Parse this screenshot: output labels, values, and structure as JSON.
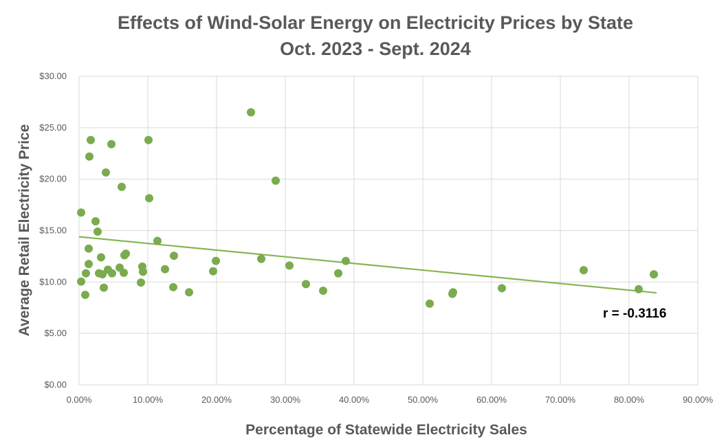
{
  "chart_data": {
    "type": "scatter",
    "title_line1": "Effects of Wind-Solar Energy on Electricity Prices by State",
    "title_line2": "Oct. 2023 - Sept. 2024",
    "xlabel": "Percentage of Statewide Electricity Sales",
    "ylabel": "Average Retail Electricity Price",
    "xlim": [
      0,
      0.9
    ],
    "ylim": [
      0,
      30
    ],
    "x_ticks": [
      0,
      0.1,
      0.2,
      0.3,
      0.4,
      0.5,
      0.6,
      0.7,
      0.8,
      0.9
    ],
    "x_tick_labels": [
      "0.00%",
      "10.00%",
      "20.00%",
      "30.00%",
      "40.00%",
      "50.00%",
      "60.00%",
      "70.00%",
      "80.00%",
      "90.00%"
    ],
    "y_ticks": [
      0,
      5,
      10,
      15,
      20,
      25,
      30
    ],
    "y_tick_labels": [
      "$0.00",
      "$5.00",
      "$10.00",
      "$15.00",
      "$20.00",
      "$25.00",
      "$30.00"
    ],
    "grid": true,
    "point_color": "#7aab4f",
    "trendline_color": "#86b552",
    "grid_color": "#d9d9d9",
    "trendline": {
      "x": [
        0,
        0.84
      ],
      "y": [
        14.4,
        8.95
      ]
    },
    "annotation": "r = -0.3116",
    "points": [
      {
        "x": 0.003,
        "y": 16.75
      },
      {
        "x": 0.003,
        "y": 10.05
      },
      {
        "x": 0.009,
        "y": 8.75
      },
      {
        "x": 0.01,
        "y": 10.85
      },
      {
        "x": 0.014,
        "y": 13.25
      },
      {
        "x": 0.014,
        "y": 11.75
      },
      {
        "x": 0.015,
        "y": 22.2
      },
      {
        "x": 0.017,
        "y": 23.8
      },
      {
        "x": 0.024,
        "y": 15.9
      },
      {
        "x": 0.027,
        "y": 14.9
      },
      {
        "x": 0.029,
        "y": 10.85
      },
      {
        "x": 0.032,
        "y": 12.4
      },
      {
        "x": 0.034,
        "y": 10.75
      },
      {
        "x": 0.036,
        "y": 9.45
      },
      {
        "x": 0.039,
        "y": 20.65
      },
      {
        "x": 0.042,
        "y": 11.2
      },
      {
        "x": 0.047,
        "y": 23.4
      },
      {
        "x": 0.048,
        "y": 10.85
      },
      {
        "x": 0.059,
        "y": 11.4
      },
      {
        "x": 0.062,
        "y": 19.25
      },
      {
        "x": 0.065,
        "y": 10.9
      },
      {
        "x": 0.066,
        "y": 12.6
      },
      {
        "x": 0.068,
        "y": 12.75
      },
      {
        "x": 0.09,
        "y": 9.95
      },
      {
        "x": 0.092,
        "y": 11.5
      },
      {
        "x": 0.093,
        "y": 11.0
      },
      {
        "x": 0.101,
        "y": 23.8
      },
      {
        "x": 0.102,
        "y": 18.15
      },
      {
        "x": 0.114,
        "y": 14.0
      },
      {
        "x": 0.125,
        "y": 11.25
      },
      {
        "x": 0.137,
        "y": 9.5
      },
      {
        "x": 0.138,
        "y": 12.55
      },
      {
        "x": 0.16,
        "y": 9.0
      },
      {
        "x": 0.195,
        "y": 11.05
      },
      {
        "x": 0.199,
        "y": 12.05
      },
      {
        "x": 0.25,
        "y": 26.5
      },
      {
        "x": 0.265,
        "y": 12.25
      },
      {
        "x": 0.286,
        "y": 19.85
      },
      {
        "x": 0.306,
        "y": 11.6
      },
      {
        "x": 0.33,
        "y": 9.8
      },
      {
        "x": 0.355,
        "y": 9.15
      },
      {
        "x": 0.377,
        "y": 10.85
      },
      {
        "x": 0.388,
        "y": 12.05
      },
      {
        "x": 0.51,
        "y": 7.9
      },
      {
        "x": 0.543,
        "y": 8.85
      },
      {
        "x": 0.544,
        "y": 9.0
      },
      {
        "x": 0.615,
        "y": 9.4
      },
      {
        "x": 0.734,
        "y": 11.15
      },
      {
        "x": 0.814,
        "y": 9.3
      },
      {
        "x": 0.836,
        "y": 10.75
      }
    ]
  }
}
